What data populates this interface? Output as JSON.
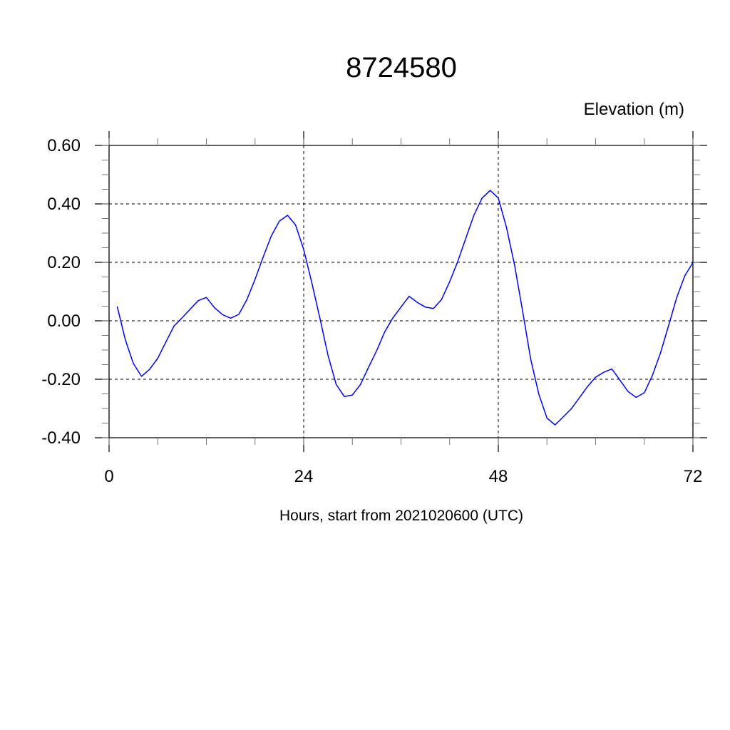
{
  "chart_data": {
    "type": "line",
    "title": "8724580",
    "ylabel": "Elevation (m)",
    "xlabel": "Hours, start from 2021020600 (UTC)",
    "xlim": [
      0,
      72
    ],
    "ylim": [
      -0.4,
      0.6
    ],
    "x_ticks": [
      0,
      24,
      48,
      72
    ],
    "x_tick_labels": [
      "0",
      "24",
      "48",
      "72"
    ],
    "x_minor_step": 6,
    "y_ticks": [
      0.6,
      0.4,
      0.2,
      0.0,
      -0.2,
      -0.4
    ],
    "y_tick_labels": [
      "0.60",
      "0.40",
      "0.20",
      "0.00",
      "-0.20",
      "-0.40"
    ],
    "y_minor_step": 0.05,
    "grid": true,
    "grid_style": "dashed",
    "line_color": "#0000ff",
    "series": [
      {
        "x": [
          1,
          2,
          3,
          4,
          5,
          6,
          7,
          8,
          9,
          10,
          11,
          12,
          13,
          14,
          15,
          16,
          17,
          18,
          19,
          20,
          21,
          22,
          23,
          24,
          25,
          26,
          27,
          28,
          29,
          30,
          31,
          32,
          33,
          34,
          35,
          36,
          37,
          38,
          39,
          40,
          41,
          42,
          43,
          44,
          45,
          46,
          47,
          48,
          49,
          50,
          51,
          52,
          53,
          54,
          55,
          56,
          57,
          58,
          59,
          60,
          61,
          62,
          63,
          64,
          65,
          66,
          67,
          68,
          69,
          70,
          71,
          72
        ],
        "values": [
          0.049,
          -0.065,
          -0.146,
          -0.19,
          -0.166,
          -0.128,
          -0.073,
          -0.018,
          0.01,
          0.04,
          0.069,
          0.08,
          0.045,
          0.021,
          0.009,
          0.022,
          0.073,
          0.142,
          0.218,
          0.29,
          0.341,
          0.361,
          0.328,
          0.244,
          0.13,
          0.008,
          -0.118,
          -0.217,
          -0.259,
          -0.254,
          -0.218,
          -0.159,
          -0.102,
          -0.037,
          0.01,
          0.047,
          0.084,
          0.063,
          0.047,
          0.042,
          0.073,
          0.134,
          0.203,
          0.283,
          0.362,
          0.42,
          0.446,
          0.42,
          0.32,
          0.191,
          0.033,
          -0.132,
          -0.252,
          -0.333,
          -0.356,
          -0.329,
          -0.301,
          -0.263,
          -0.225,
          -0.193,
          -0.176,
          -0.165,
          -0.203,
          -0.242,
          -0.262,
          -0.246,
          -0.187,
          -0.11,
          -0.016,
          0.08,
          0.154,
          0.199
        ]
      }
    ]
  }
}
